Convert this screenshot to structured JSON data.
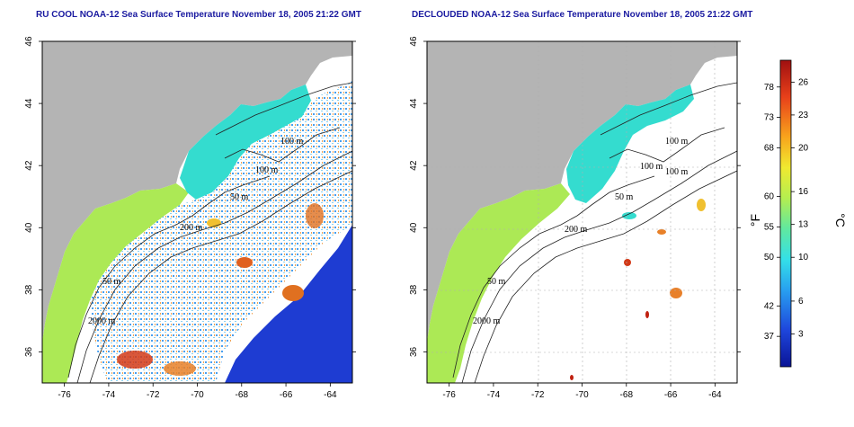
{
  "titles": {
    "left": "RU COOL NOAA-12 Sea Surface Temperature November 18, 2005 21:22 GMT",
    "right": "DECLOUDED NOAA-12 Sea Surface Temperature November 18, 2005 21:22 GMT"
  },
  "axes": {
    "lon_ticks": [
      "-76",
      "-74",
      "-72",
      "-70",
      "-68",
      "-66",
      "-64"
    ],
    "lat_ticks": [
      "46",
      "44",
      "42",
      "40",
      "38",
      "36"
    ]
  },
  "contour_labels": {
    "left": [
      "100 m",
      "100 m",
      "50 m",
      "200 m",
      "50 m",
      "2000 m"
    ],
    "right": [
      "100 m",
      "100 m",
      "100 m",
      "50 m",
      "200 m",
      "50 m",
      "2000 m"
    ]
  },
  "colorbar": {
    "fahrenheit_ticks": [
      "78",
      "73",
      "68",
      "60",
      "55",
      "50",
      "42",
      "37"
    ],
    "celsius_ticks": [
      "26",
      "23",
      "20",
      "16",
      "13",
      "10",
      "6",
      "3"
    ],
    "unit_f": "°F",
    "unit_c": "°C"
  },
  "colors": {
    "land": "#b4b4b4",
    "cloud": "#ffffff",
    "cold": "#1e3cd2",
    "warm": "#d22a14",
    "shelf": "#a8e84c",
    "slope": "#34dccf"
  }
}
